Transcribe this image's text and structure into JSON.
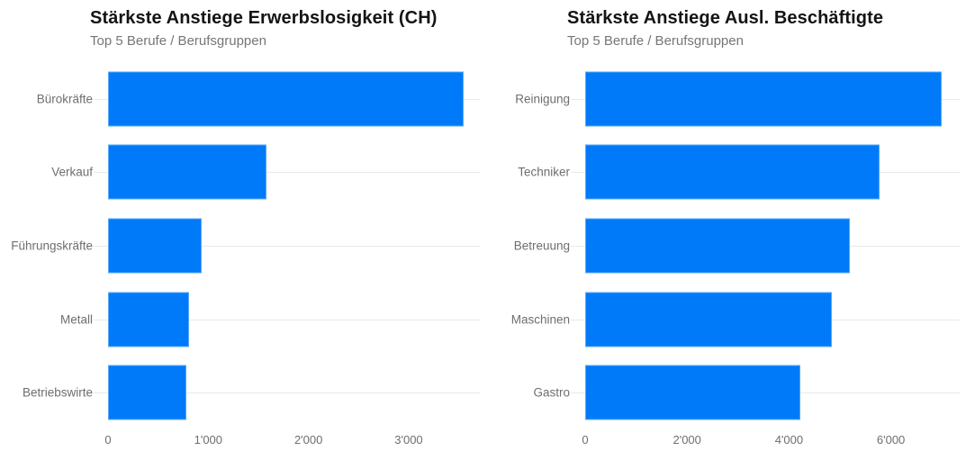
{
  "colors": {
    "bar": "#007af8",
    "gridline": "#e9e9e9",
    "title": "#141414",
    "subtitle": "#767676",
    "axis_label": "#6e6e6e"
  },
  "chart_data": [
    {
      "type": "bar",
      "orientation": "horizontal",
      "title": "Stärkste Anstiege Erwerbslosigkeit (CH)",
      "subtitle": "Top 5 Berufe / Berufsgruppen",
      "categories": [
        "Bürokräfte",
        "Verkauf",
        "Führungskräfte",
        "Metall",
        "Betriebswirte"
      ],
      "values": [
        3550,
        1580,
        930,
        810,
        780
      ],
      "xlim": [
        0,
        3710
      ],
      "xticks": [
        0,
        1000,
        2000,
        3000
      ],
      "xtick_labels": [
        "0",
        "1'000",
        "2'000",
        "3'000"
      ],
      "grid": "horizontal-per-row",
      "legend": "none",
      "bar_color": "#007af8"
    },
    {
      "type": "bar",
      "orientation": "horizontal",
      "title": "Stärkste Anstiege Ausl. Beschäftigte",
      "subtitle": "Top 5 Berufe / Berufsgruppen",
      "categories": [
        "Reinigung",
        "Techniker",
        "Betreuung",
        "Maschinen",
        "Gastro"
      ],
      "values": [
        7000,
        5780,
        5190,
        4840,
        4220
      ],
      "xlim": [
        0,
        7350
      ],
      "xticks": [
        0,
        2000,
        4000,
        6000
      ],
      "xtick_labels": [
        "0",
        "2'000",
        "4'000",
        "6'000"
      ],
      "grid": "horizontal-per-row",
      "legend": "none",
      "bar_color": "#007af8"
    }
  ]
}
